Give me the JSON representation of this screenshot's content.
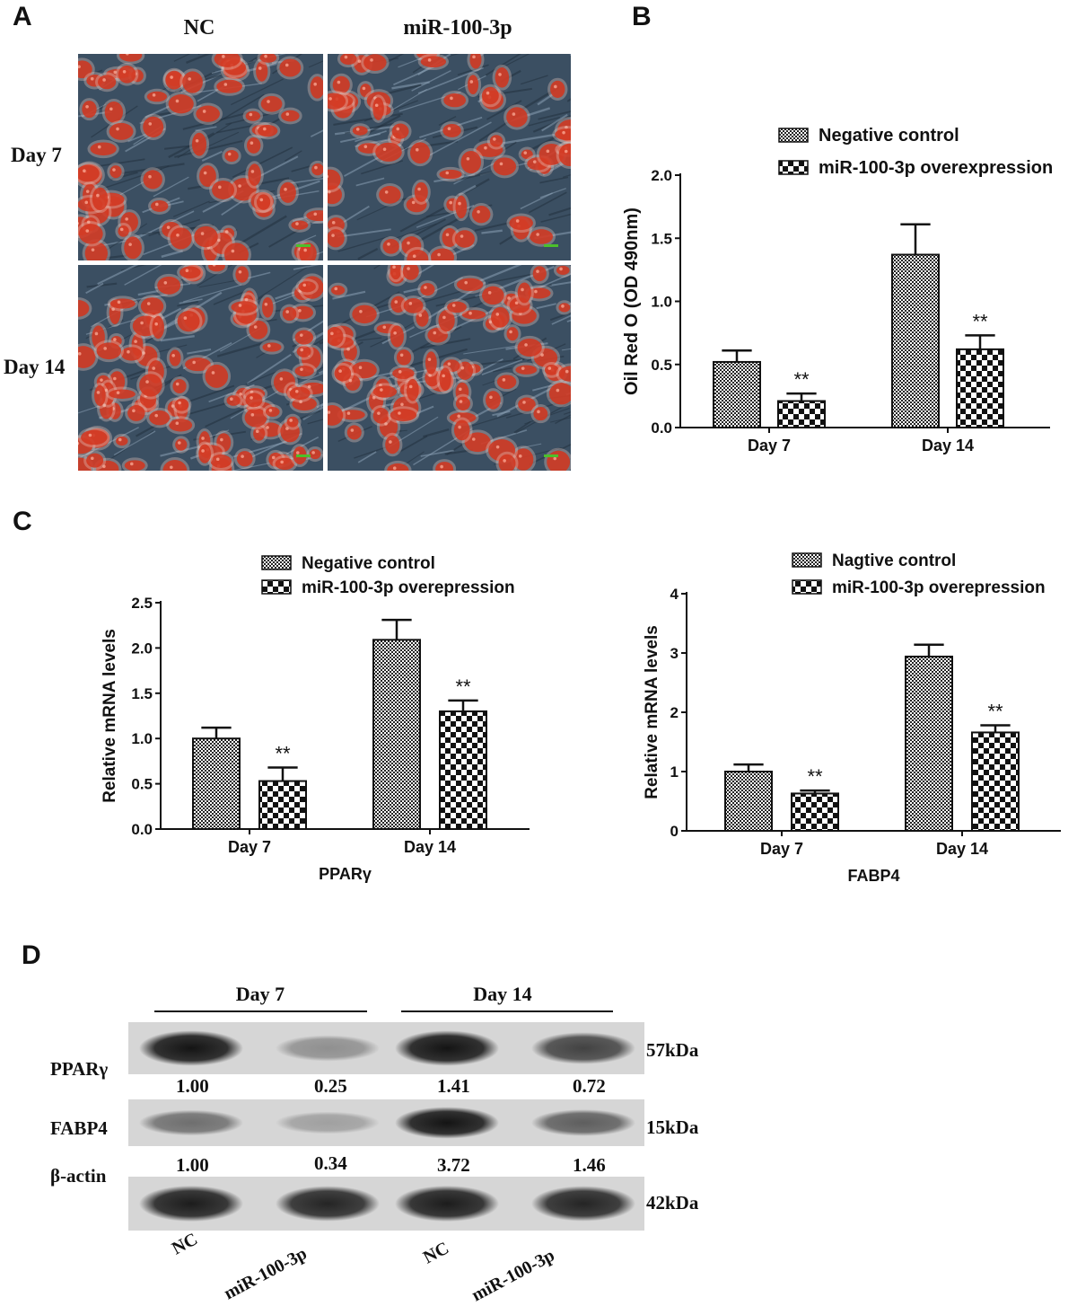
{
  "colors": {
    "ink": "#111111",
    "micro_bg": "#3b4f62",
    "droplet": "#d2341c",
    "scale_bar": "#4cc02a",
    "blot_bg": "#d6d6d6",
    "band": "#141414"
  },
  "panelA": {
    "letter": "A",
    "col_labels": [
      "NC",
      "miR-100-3p"
    ],
    "row_labels": [
      "Day 7",
      "Day 14"
    ],
    "images": [
      {
        "row": 0,
        "col": 0,
        "name": "micrograph-nc-day7",
        "density": 0.55
      },
      {
        "row": 0,
        "col": 1,
        "name": "micrograph-mir-day7",
        "density": 0.35
      },
      {
        "row": 1,
        "col": 0,
        "name": "micrograph-nc-day14",
        "density": 0.95
      },
      {
        "row": 1,
        "col": 1,
        "name": "micrograph-mir-day14",
        "density": 0.7
      }
    ]
  },
  "panelB": {
    "letter": "B"
  },
  "panelC": {
    "letter": "C"
  },
  "panelD": {
    "letter": "D",
    "group_labels": [
      "Day 7",
      "Day 14"
    ],
    "rows": [
      {
        "label": "PPARγ",
        "kda": "57kDa",
        "quant": [
          "1.00",
          "0.25",
          "1.41",
          "0.72"
        ],
        "intensity": [
          1.0,
          0.25,
          1.0,
          0.72
        ]
      },
      {
        "label": "FABP4",
        "kda": "15kDa",
        "quant": [
          "1.00",
          "0.34",
          "3.72",
          "1.46"
        ],
        "intensity": [
          0.45,
          0.15,
          1.0,
          0.55
        ]
      },
      {
        "label": "β-actin",
        "kda": "42kDa",
        "quant": [],
        "intensity": [
          0.95,
          0.9,
          0.95,
          0.9
        ]
      }
    ],
    "lane_labels": [
      "NC",
      "miR-100-3p",
      "NC",
      "miR-100-3p"
    ]
  },
  "chart_data": [
    {
      "id": "B",
      "type": "bar",
      "categories": [
        "Day 7",
        "Day 14"
      ],
      "series": [
        {
          "name": "Negative control",
          "values": [
            0.52,
            1.37
          ],
          "errors": [
            0.09,
            0.24
          ],
          "pattern": "fine"
        },
        {
          "name": "miR-100-3p overexpression",
          "values": [
            0.21,
            0.62
          ],
          "errors": [
            0.06,
            0.11
          ],
          "pattern": "checker"
        }
      ],
      "annotations": [
        {
          "series": 1,
          "category": 0,
          "text": "**"
        },
        {
          "series": 1,
          "category": 1,
          "text": "**"
        }
      ],
      "ylabel": "Oil Red O (OD 490nm)",
      "xlabel": "",
      "ylim": [
        0,
        2.0
      ],
      "yticks": [
        "0.0",
        "0.5",
        "1.0",
        "1.5",
        "2.0"
      ],
      "legend": "top-right"
    },
    {
      "id": "C1",
      "type": "bar",
      "categories": [
        "Day 7",
        "Day 14"
      ],
      "series": [
        {
          "name": "Negative control",
          "values": [
            1.0,
            2.09
          ],
          "errors": [
            0.12,
            0.22
          ],
          "pattern": "fine"
        },
        {
          "name": "miR-100-3p overepression",
          "values": [
            0.53,
            1.3
          ],
          "errors": [
            0.15,
            0.12
          ],
          "pattern": "checker"
        }
      ],
      "annotations": [
        {
          "series": 1,
          "category": 0,
          "text": "**"
        },
        {
          "series": 1,
          "category": 1,
          "text": "**"
        }
      ],
      "ylabel": "Relative mRNA levels",
      "xlabel": "PPARγ",
      "ylim": [
        0,
        2.5
      ],
      "yticks": [
        "0.0",
        "0.5",
        "1.0",
        "1.5",
        "2.0",
        "2.5"
      ],
      "legend": "top"
    },
    {
      "id": "C2",
      "type": "bar",
      "categories": [
        "Day 7",
        "Day 14"
      ],
      "series": [
        {
          "name": "Nagtive control",
          "values": [
            1.0,
            2.94
          ],
          "errors": [
            0.12,
            0.2
          ],
          "pattern": "fine"
        },
        {
          "name": "miR-100-3p overepression",
          "values": [
            0.63,
            1.66
          ],
          "errors": [
            0.05,
            0.12
          ],
          "pattern": "checker"
        }
      ],
      "annotations": [
        {
          "series": 1,
          "category": 0,
          "text": "**"
        },
        {
          "series": 1,
          "category": 1,
          "text": "**"
        }
      ],
      "ylabel": "Relative mRNA levels",
      "xlabel": "FABP4",
      "ylim": [
        0,
        4
      ],
      "yticks": [
        "0",
        "1",
        "2",
        "3",
        "4"
      ],
      "legend": "top"
    }
  ]
}
